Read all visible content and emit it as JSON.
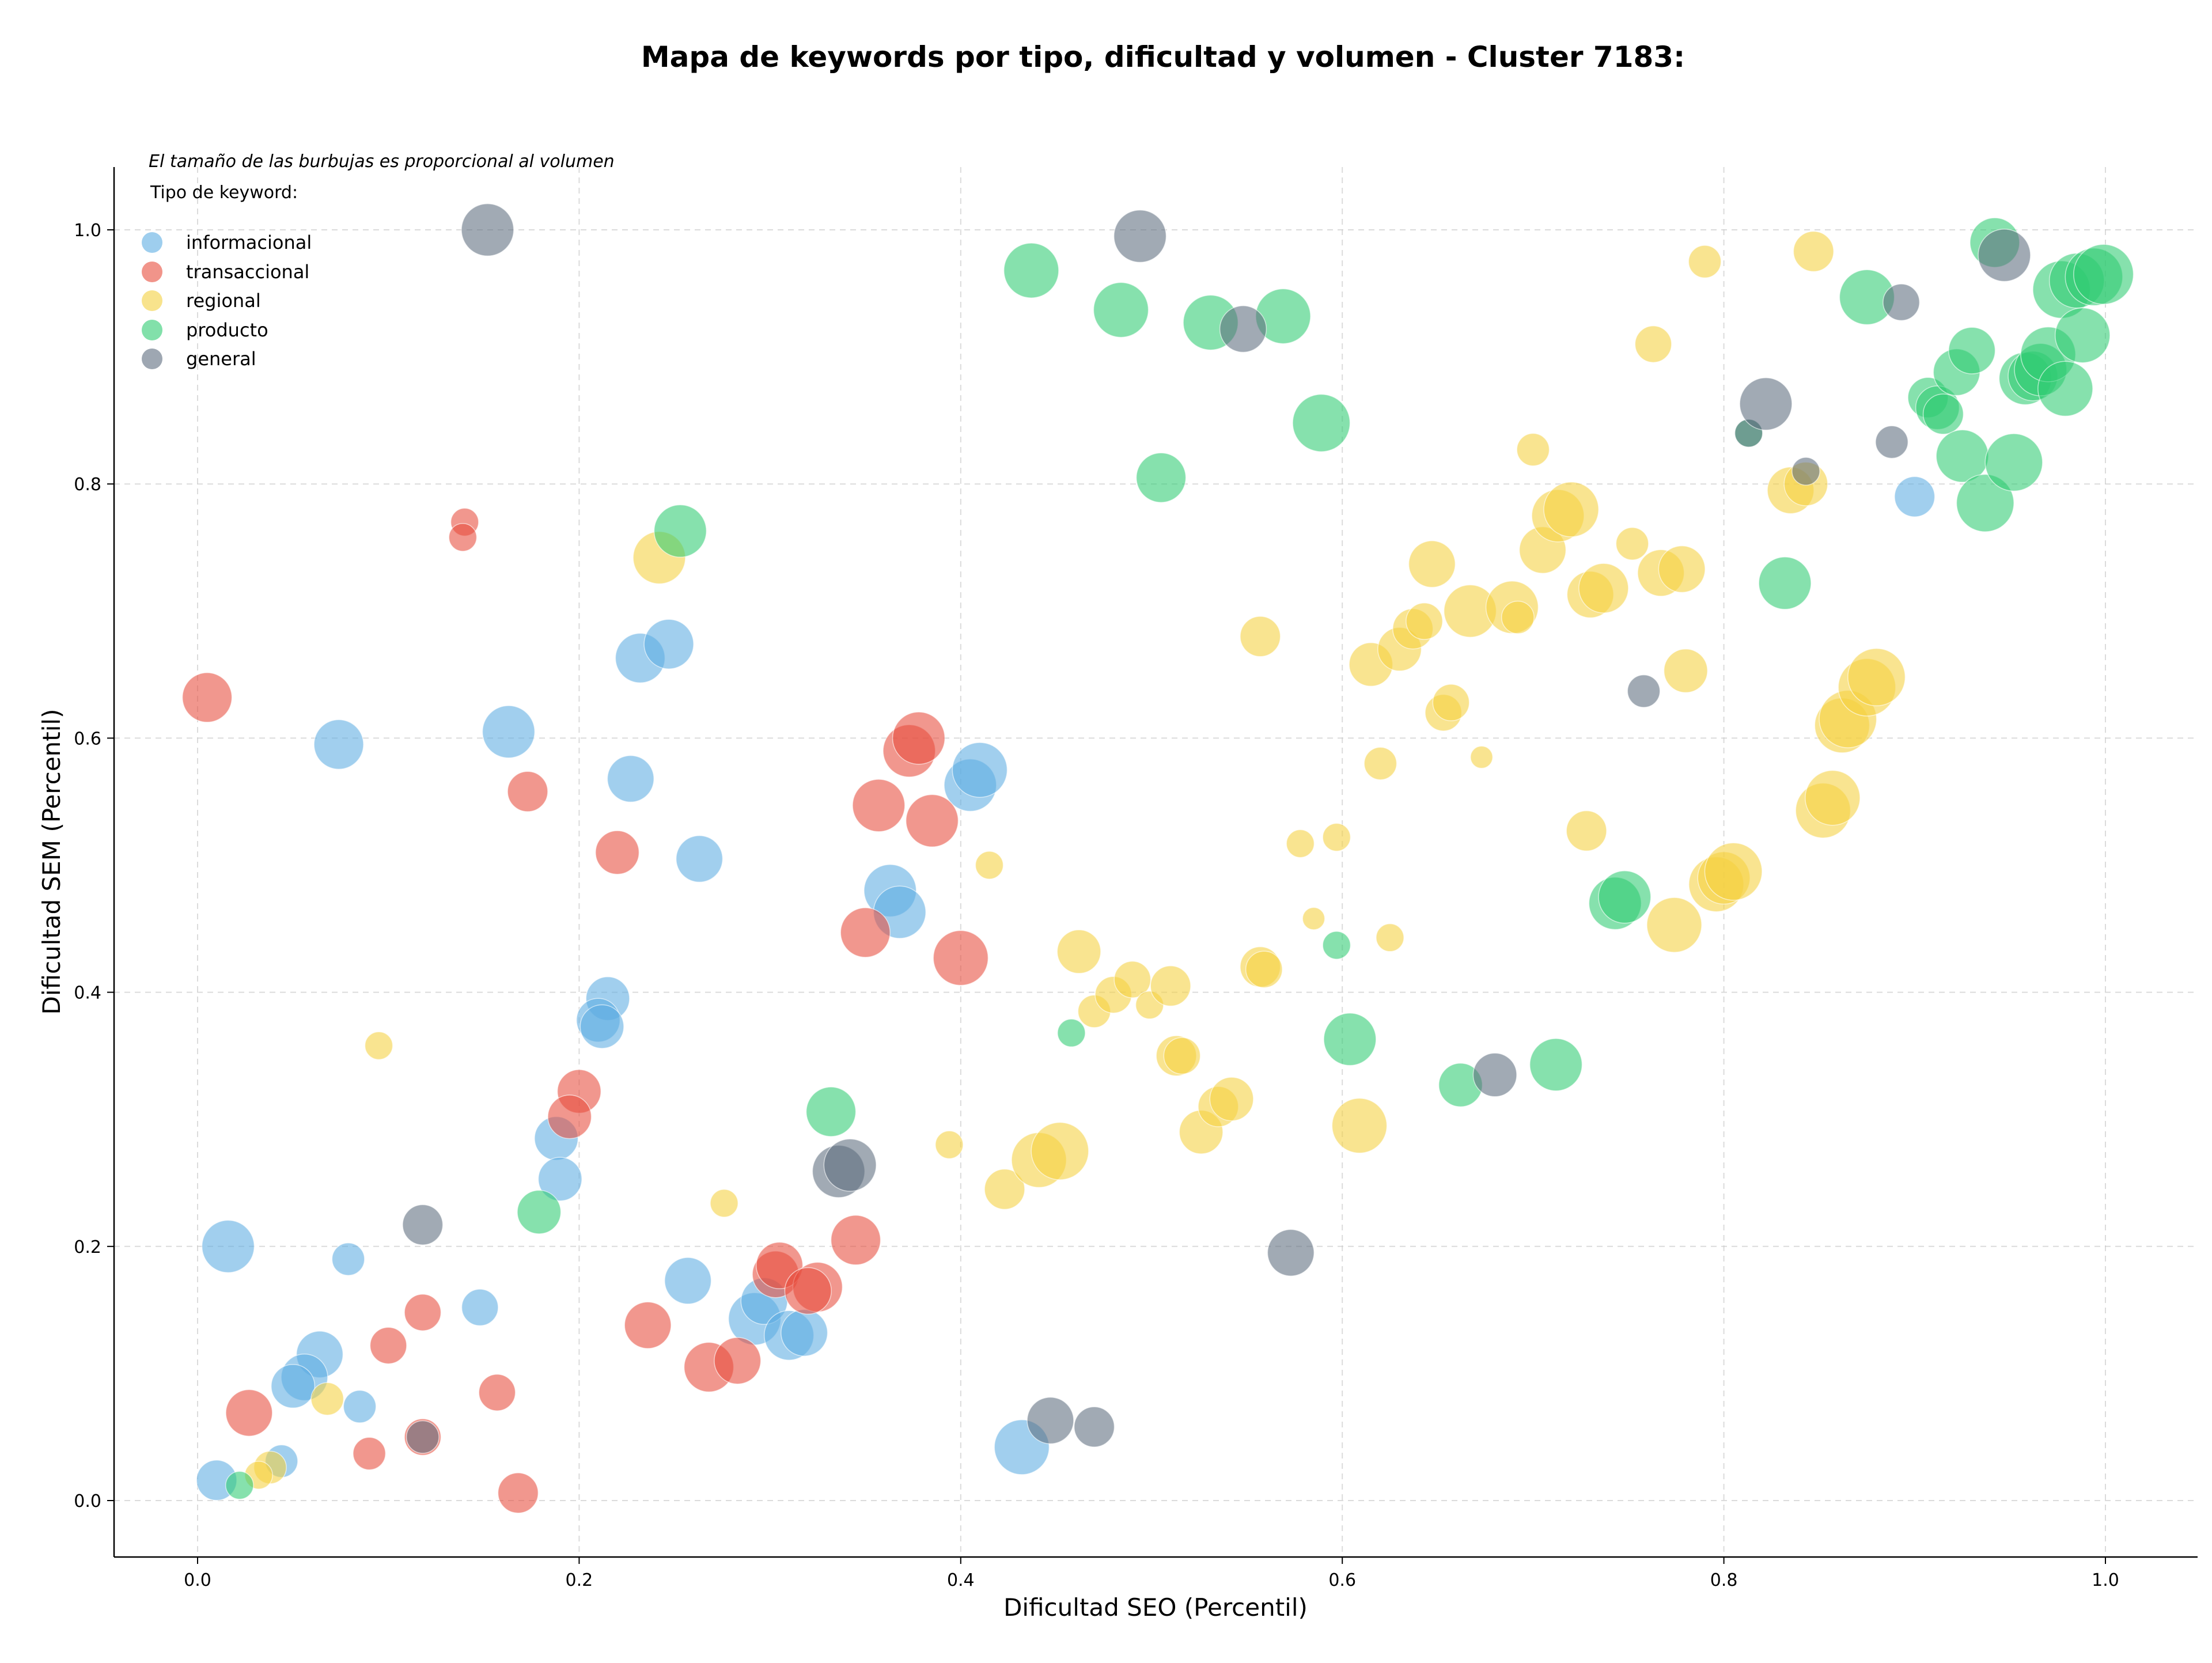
{
  "chart_data": {
    "type": "scatter",
    "title": "Mapa de keywords por tipo, dificultad y volumen - Cluster 7183:",
    "xlabel": "Dificultad SEO (Percentil)",
    "ylabel": "Dificultad SEM (Percentil)",
    "xlim": [
      -0.045,
      1.05
    ],
    "ylim": [
      -0.045,
      1.05
    ],
    "xticks": [
      "0.0",
      "0.2",
      "0.4",
      "0.6",
      "0.8",
      "1.0"
    ],
    "yticks": [
      "0.0",
      "0.2",
      "0.4",
      "0.6",
      "0.8",
      "1.0"
    ],
    "grid": true,
    "annotation": "El tamaño de las burbujas es proporcional al volumen",
    "legend": {
      "title": "Tipo de keyword:",
      "placement": "top-left",
      "entries": [
        "informacional",
        "transaccional",
        "regional",
        "producto",
        "general"
      ]
    },
    "colors": {
      "informacional": "#5dade2",
      "transaccional": "#e74c3c",
      "regional": "#f4d03f",
      "producto": "#2ecc71",
      "general": "#5d6d7e"
    },
    "series": [
      {
        "name": "informacional",
        "points": [
          [
            0.074,
            0.595,
            8
          ],
          [
            0.163,
            0.605,
            9
          ],
          [
            0.232,
            0.663,
            8
          ],
          [
            0.247,
            0.674,
            8
          ],
          [
            0.227,
            0.568,
            7
          ],
          [
            0.263,
            0.505,
            7
          ],
          [
            0.016,
            0.2,
            9
          ],
          [
            0.079,
            0.19,
            3
          ],
          [
            0.085,
            0.074,
            3
          ],
          [
            0.064,
            0.115,
            7
          ],
          [
            0.056,
            0.097,
            7
          ],
          [
            0.05,
            0.09,
            6
          ],
          [
            0.01,
            0.016,
            5
          ],
          [
            0.044,
            0.031,
            3
          ],
          [
            0.148,
            0.152,
            4
          ],
          [
            0.188,
            0.285,
            6
          ],
          [
            0.19,
            0.253,
            6
          ],
          [
            0.215,
            0.395,
            6
          ],
          [
            0.21,
            0.378,
            6
          ],
          [
            0.212,
            0.373,
            6
          ],
          [
            0.257,
            0.173,
            7
          ],
          [
            0.292,
            0.143,
            9
          ],
          [
            0.297,
            0.157,
            7
          ],
          [
            0.31,
            0.13,
            8
          ],
          [
            0.318,
            0.132,
            7
          ],
          [
            0.363,
            0.48,
            9
          ],
          [
            0.368,
            0.463,
            9
          ],
          [
            0.405,
            0.563,
            9
          ],
          [
            0.41,
            0.575,
            10
          ],
          [
            0.432,
            0.042,
            10
          ],
          [
            0.9,
            0.79,
            5
          ]
        ]
      },
      {
        "name": "transaccional",
        "points": [
          [
            0.005,
            0.632,
            8
          ],
          [
            0.14,
            0.77,
            2
          ],
          [
            0.139,
            0.758,
            2
          ],
          [
            0.173,
            0.558,
            5
          ],
          [
            0.22,
            0.51,
            6
          ],
          [
            0.2,
            0.322,
            6
          ],
          [
            0.195,
            0.302,
            6
          ],
          [
            0.1,
            0.122,
            4
          ],
          [
            0.118,
            0.148,
            4
          ],
          [
            0.118,
            0.05,
            4
          ],
          [
            0.09,
            0.037,
            3
          ],
          [
            0.157,
            0.085,
            4
          ],
          [
            0.168,
            0.006,
            5
          ],
          [
            0.027,
            0.069,
            7
          ],
          [
            0.236,
            0.138,
            7
          ],
          [
            0.268,
            0.105,
            8
          ],
          [
            0.283,
            0.11,
            7
          ],
          [
            0.303,
            0.178,
            7
          ],
          [
            0.305,
            0.185,
            7
          ],
          [
            0.325,
            0.168,
            8
          ],
          [
            0.32,
            0.165,
            7
          ],
          [
            0.345,
            0.205,
            8
          ],
          [
            0.35,
            0.447,
            8
          ],
          [
            0.357,
            0.547,
            9
          ],
          [
            0.373,
            0.59,
            9
          ],
          [
            0.378,
            0.6,
            9
          ],
          [
            0.385,
            0.535,
            9
          ],
          [
            0.4,
            0.427,
            10
          ]
        ]
      },
      {
        "name": "regional",
        "points": [
          [
            0.095,
            0.358,
            2
          ],
          [
            0.068,
            0.08,
            3
          ],
          [
            0.038,
            0.026,
            3
          ],
          [
            0.032,
            0.02,
            2
          ],
          [
            0.276,
            0.234,
            2
          ],
          [
            0.242,
            0.742,
            9
          ],
          [
            0.394,
            0.28,
            2
          ],
          [
            0.415,
            0.5,
            2
          ],
          [
            0.423,
            0.245,
            5
          ],
          [
            0.441,
            0.268,
            10
          ],
          [
            0.452,
            0.275,
            11
          ],
          [
            0.462,
            0.432,
            6
          ],
          [
            0.47,
            0.385,
            3
          ],
          [
            0.48,
            0.398,
            4
          ],
          [
            0.49,
            0.41,
            4
          ],
          [
            0.499,
            0.39,
            2
          ],
          [
            0.51,
            0.405,
            5
          ],
          [
            0.513,
            0.35,
            5
          ],
          [
            0.516,
            0.35,
            4
          ],
          [
            0.526,
            0.29,
            6
          ],
          [
            0.535,
            0.31,
            5
          ],
          [
            0.542,
            0.316,
            6
          ],
          [
            0.557,
            0.42,
            5
          ],
          [
            0.559,
            0.418,
            4
          ],
          [
            0.557,
            0.68,
            5
          ],
          [
            0.578,
            0.517,
            2
          ],
          [
            0.585,
            0.458,
            1
          ],
          [
            0.597,
            0.522,
            2
          ],
          [
            0.609,
            0.295,
            10
          ],
          [
            0.615,
            0.658,
            6
          ],
          [
            0.62,
            0.58,
            3
          ],
          [
            0.625,
            0.443,
            2
          ],
          [
            0.63,
            0.67,
            6
          ],
          [
            0.637,
            0.686,
            5
          ],
          [
            0.643,
            0.692,
            4
          ],
          [
            0.647,
            0.737,
            7
          ],
          [
            0.653,
            0.62,
            4
          ],
          [
            0.657,
            0.628,
            4
          ],
          [
            0.667,
            0.7,
            9
          ],
          [
            0.673,
            0.585,
            1
          ],
          [
            0.689,
            0.703,
            9
          ],
          [
            0.692,
            0.695,
            3
          ],
          [
            0.7,
            0.827,
            3
          ],
          [
            0.705,
            0.748,
            7
          ],
          [
            0.713,
            0.775,
            9
          ],
          [
            0.72,
            0.78,
            10
          ],
          [
            0.728,
            0.527,
            5
          ],
          [
            0.73,
            0.713,
            7
          ],
          [
            0.737,
            0.718,
            8
          ],
          [
            0.752,
            0.753,
            3
          ],
          [
            0.763,
            0.91,
            4
          ],
          [
            0.767,
            0.73,
            7
          ],
          [
            0.774,
            0.453,
            10
          ],
          [
            0.778,
            0.733,
            7
          ],
          [
            0.79,
            0.975,
            3
          ],
          [
            0.78,
            0.653,
            6
          ],
          [
            0.796,
            0.485,
            10
          ],
          [
            0.8,
            0.49,
            9
          ],
          [
            0.805,
            0.495,
            11
          ],
          [
            0.835,
            0.795,
            7
          ],
          [
            0.843,
            0.8,
            6
          ],
          [
            0.847,
            0.983,
            5
          ],
          [
            0.852,
            0.543,
            10
          ],
          [
            0.857,
            0.553,
            10
          ],
          [
            0.862,
            0.61,
            10
          ],
          [
            0.865,
            0.615,
            11
          ],
          [
            0.875,
            0.64,
            11
          ],
          [
            0.88,
            0.648,
            11
          ]
        ]
      },
      {
        "name": "producto",
        "points": [
          [
            0.022,
            0.012,
            2
          ],
          [
            0.179,
            0.227,
            6
          ],
          [
            0.253,
            0.763,
            9
          ],
          [
            0.332,
            0.306,
            8
          ],
          [
            0.437,
            0.968,
            10
          ],
          [
            0.484,
            0.937,
            10
          ],
          [
            0.505,
            0.805,
            8
          ],
          [
            0.531,
            0.927,
            10
          ],
          [
            0.569,
            0.932,
            10
          ],
          [
            0.589,
            0.848,
            11
          ],
          [
            0.604,
            0.363,
            9
          ],
          [
            0.597,
            0.437,
            2
          ],
          [
            0.458,
            0.368,
            2
          ],
          [
            0.662,
            0.327,
            6
          ],
          [
            0.712,
            0.343,
            9
          ],
          [
            0.743,
            0.47,
            9
          ],
          [
            0.748,
            0.475,
            9
          ],
          [
            0.813,
            0.84,
            2
          ],
          [
            0.832,
            0.722,
            9
          ],
          [
            0.875,
            0.947,
            10
          ],
          [
            0.907,
            0.868,
            5
          ],
          [
            0.912,
            0.86,
            6
          ],
          [
            0.915,
            0.855,
            5
          ],
          [
            0.922,
            0.888,
            7
          ],
          [
            0.925,
            0.822,
            9
          ],
          [
            0.93,
            0.905,
            7
          ],
          [
            0.937,
            0.785,
            11
          ],
          [
            0.942,
            0.99,
            8
          ],
          [
            0.952,
            0.817,
            11
          ],
          [
            0.958,
            0.883,
            9
          ],
          [
            0.962,
            0.885,
            8
          ],
          [
            0.966,
            0.89,
            9
          ],
          [
            0.97,
            0.902,
            10
          ],
          [
            0.977,
            0.953,
            11
          ],
          [
            0.979,
            0.875,
            10
          ],
          [
            0.985,
            0.96,
            10
          ],
          [
            0.988,
            0.917,
            10
          ],
          [
            0.994,
            0.963,
            11
          ],
          [
            0.999,
            0.965,
            12
          ]
        ]
      },
      {
        "name": "general",
        "points": [
          [
            0.152,
            1.0,
            9
          ],
          [
            0.118,
            0.217,
            5
          ],
          [
            0.118,
            0.05,
            3
          ],
          [
            0.336,
            0.259,
            9
          ],
          [
            0.342,
            0.264,
            9
          ],
          [
            0.447,
            0.063,
            7
          ],
          [
            0.47,
            0.058,
            5
          ],
          [
            0.494,
            0.995,
            9
          ],
          [
            0.548,
            0.922,
            7
          ],
          [
            0.573,
            0.195,
            7
          ],
          [
            0.68,
            0.335,
            6
          ],
          [
            0.758,
            0.637,
            3
          ],
          [
            0.813,
            0.84,
            2
          ],
          [
            0.822,
            0.863,
            9
          ],
          [
            0.843,
            0.81,
            2
          ],
          [
            0.888,
            0.833,
            3
          ],
          [
            0.893,
            0.943,
            4
          ],
          [
            0.947,
            0.98,
            9
          ]
        ]
      }
    ]
  }
}
